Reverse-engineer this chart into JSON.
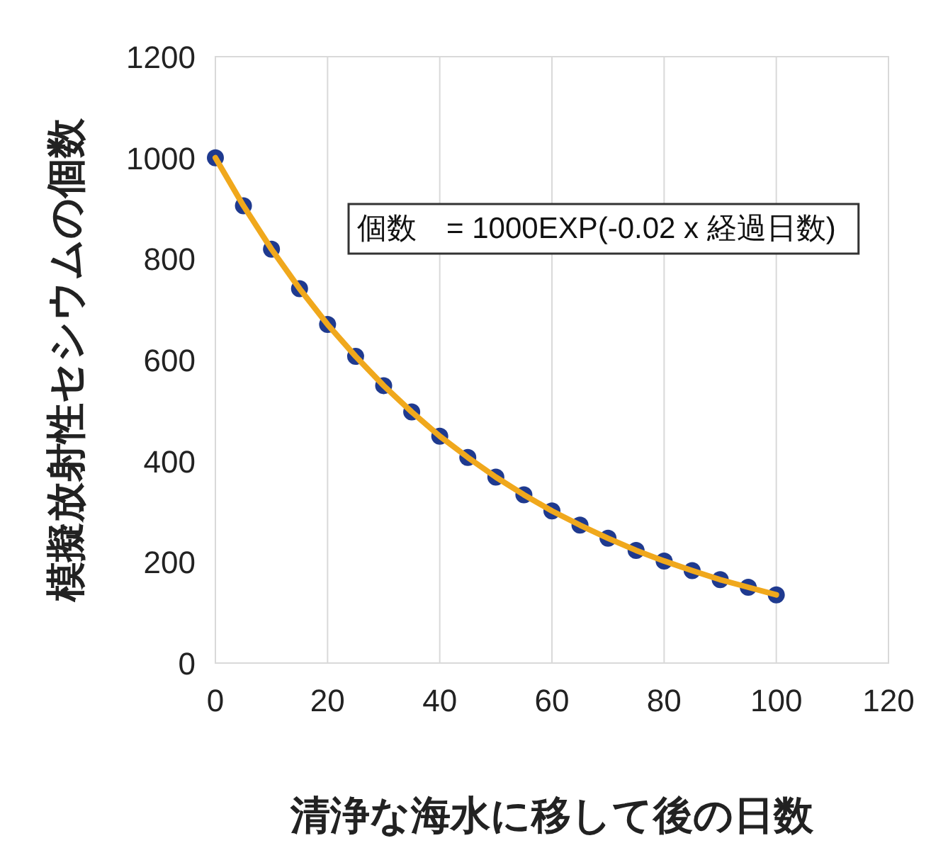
{
  "chart_data": {
    "type": "line",
    "xlabel": "清浄な海水に移して後の日数",
    "ylabel": "模擬放射性セシウムの個数",
    "x": [
      0,
      5,
      10,
      15,
      20,
      25,
      30,
      35,
      40,
      45,
      50,
      55,
      60,
      65,
      70,
      75,
      80,
      85,
      90,
      95,
      100
    ],
    "series": [
      {
        "type": "scatter",
        "color": "#1f3a8f",
        "values": [
          1000,
          905,
          819,
          741,
          670,
          607,
          549,
          497,
          449,
          407,
          368,
          333,
          301,
          273,
          247,
          223,
          202,
          183,
          165,
          150,
          135
        ]
      },
      {
        "color": "#f0a81c",
        "values": [
          1000,
          905,
          819,
          741,
          670,
          607,
          549,
          497,
          449,
          407,
          368,
          333,
          301,
          273,
          247,
          223,
          202,
          183,
          165,
          150,
          135
        ]
      }
    ],
    "xlim": [
      0,
      120
    ],
    "xticks": [
      0,
      20,
      40,
      60,
      80,
      100,
      120
    ],
    "ylim": [
      0,
      1200
    ],
    "yticks": [
      0,
      200,
      400,
      600,
      800,
      1000,
      1200
    ],
    "grid": "x",
    "annotations": [
      "個数　= 1000EXP(-0.02 x 経過日数)"
    ]
  }
}
